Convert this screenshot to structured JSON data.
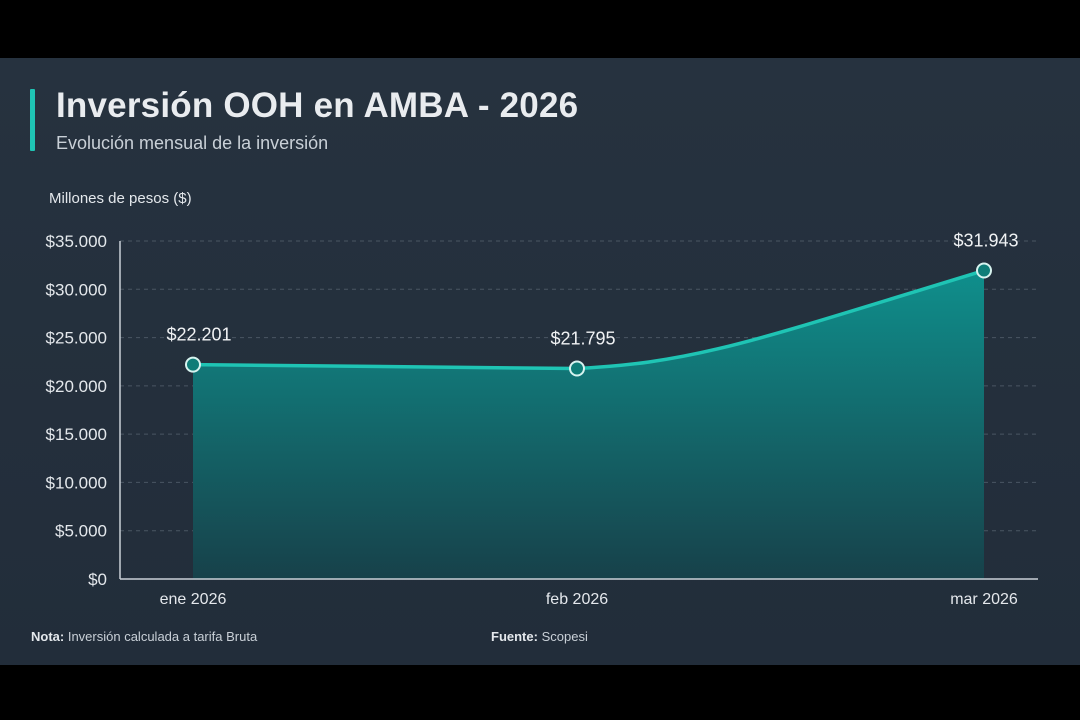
{
  "header": {
    "title": "Inversión OOH en AMBA - 2026",
    "subtitle": "Evolución mensual de la inversión"
  },
  "colors": {
    "background": "#232e3b",
    "accent": "#1fc4b4",
    "area_top": "#0f8f8c",
    "area_bottom": "#17414a",
    "grid": "#4a5663",
    "text": "#e4e8ec"
  },
  "chart_data": {
    "type": "area",
    "categories": [
      "ene 2026",
      "feb 2026",
      "mar 2026"
    ],
    "series": [
      {
        "values": [
          22201,
          21795,
          31943
        ]
      }
    ],
    "data_labels": [
      "$22.201",
      "$21.795",
      "$31.943"
    ],
    "ylabel": "Millones de pesos ($)",
    "ylim": [
      0,
      35000
    ],
    "yticks": [
      0,
      5000,
      10000,
      15000,
      20000,
      25000,
      30000,
      35000
    ],
    "ytick_labels": [
      "$0",
      "$5.000",
      "$10.000",
      "$15.000",
      "$20.000",
      "$25.000",
      "$30.000",
      "$35.000"
    ],
    "grid": true
  },
  "footer": {
    "note_label": "Nota:",
    "note_text": "Inversión calculada a tarifa Bruta",
    "source_label": "Fuente:",
    "source_text": "Scopesi"
  }
}
